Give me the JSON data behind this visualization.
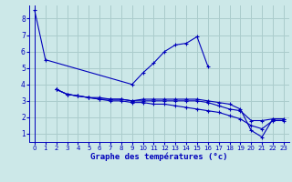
{
  "title": "Graphe des températures (°c)",
  "background_color": "#cce8e8",
  "grid_color": "#aacccc",
  "line_color": "#0000bb",
  "xlim": [
    -0.5,
    23.5
  ],
  "ylim": [
    0.5,
    8.8
  ],
  "yticks": [
    1,
    2,
    3,
    4,
    5,
    6,
    7,
    8
  ],
  "xticks": [
    0,
    1,
    2,
    3,
    4,
    5,
    6,
    7,
    8,
    9,
    10,
    11,
    12,
    13,
    14,
    15,
    16,
    17,
    18,
    19,
    20,
    21,
    22,
    23
  ],
  "series": [
    {
      "x": [
        0,
        1,
        9,
        10,
        11,
        12,
        13,
        14,
        15,
        16
      ],
      "y": [
        8.5,
        5.5,
        4.0,
        4.7,
        5.3,
        6.0,
        6.4,
        6.5,
        6.9,
        5.1
      ]
    },
    {
      "x": [
        2,
        3,
        4,
        5,
        6,
        7,
        8,
        9,
        10,
        11,
        12,
        13,
        14,
        15,
        16,
        17,
        18,
        19,
        20,
        21,
        22,
        23
      ],
      "y": [
        3.7,
        3.4,
        3.3,
        3.2,
        3.2,
        3.1,
        3.1,
        3.0,
        3.1,
        3.1,
        3.1,
        3.1,
        3.1,
        3.1,
        3.0,
        2.9,
        2.8,
        2.5,
        1.2,
        0.8,
        1.9,
        1.9
      ]
    },
    {
      "x": [
        2,
        3,
        4,
        5,
        6,
        7,
        8,
        9,
        10,
        11,
        12,
        13,
        14,
        15,
        16,
        17,
        18,
        19,
        20,
        21,
        22,
        23
      ],
      "y": [
        3.7,
        3.4,
        3.3,
        3.2,
        3.1,
        3.1,
        3.1,
        3.0,
        3.0,
        3.0,
        3.0,
        3.0,
        3.0,
        3.0,
        2.9,
        2.7,
        2.5,
        2.4,
        1.8,
        1.8,
        1.9,
        1.9
      ]
    },
    {
      "x": [
        2,
        3,
        4,
        5,
        6,
        7,
        8,
        9,
        10,
        11,
        12,
        13,
        14,
        15,
        16,
        17,
        18,
        19,
        20,
        21,
        22,
        23
      ],
      "y": [
        3.7,
        3.4,
        3.3,
        3.2,
        3.1,
        3.0,
        3.0,
        2.9,
        2.9,
        2.8,
        2.8,
        2.7,
        2.6,
        2.5,
        2.4,
        2.3,
        2.1,
        1.9,
        1.5,
        1.3,
        1.8,
        1.8
      ]
    }
  ]
}
